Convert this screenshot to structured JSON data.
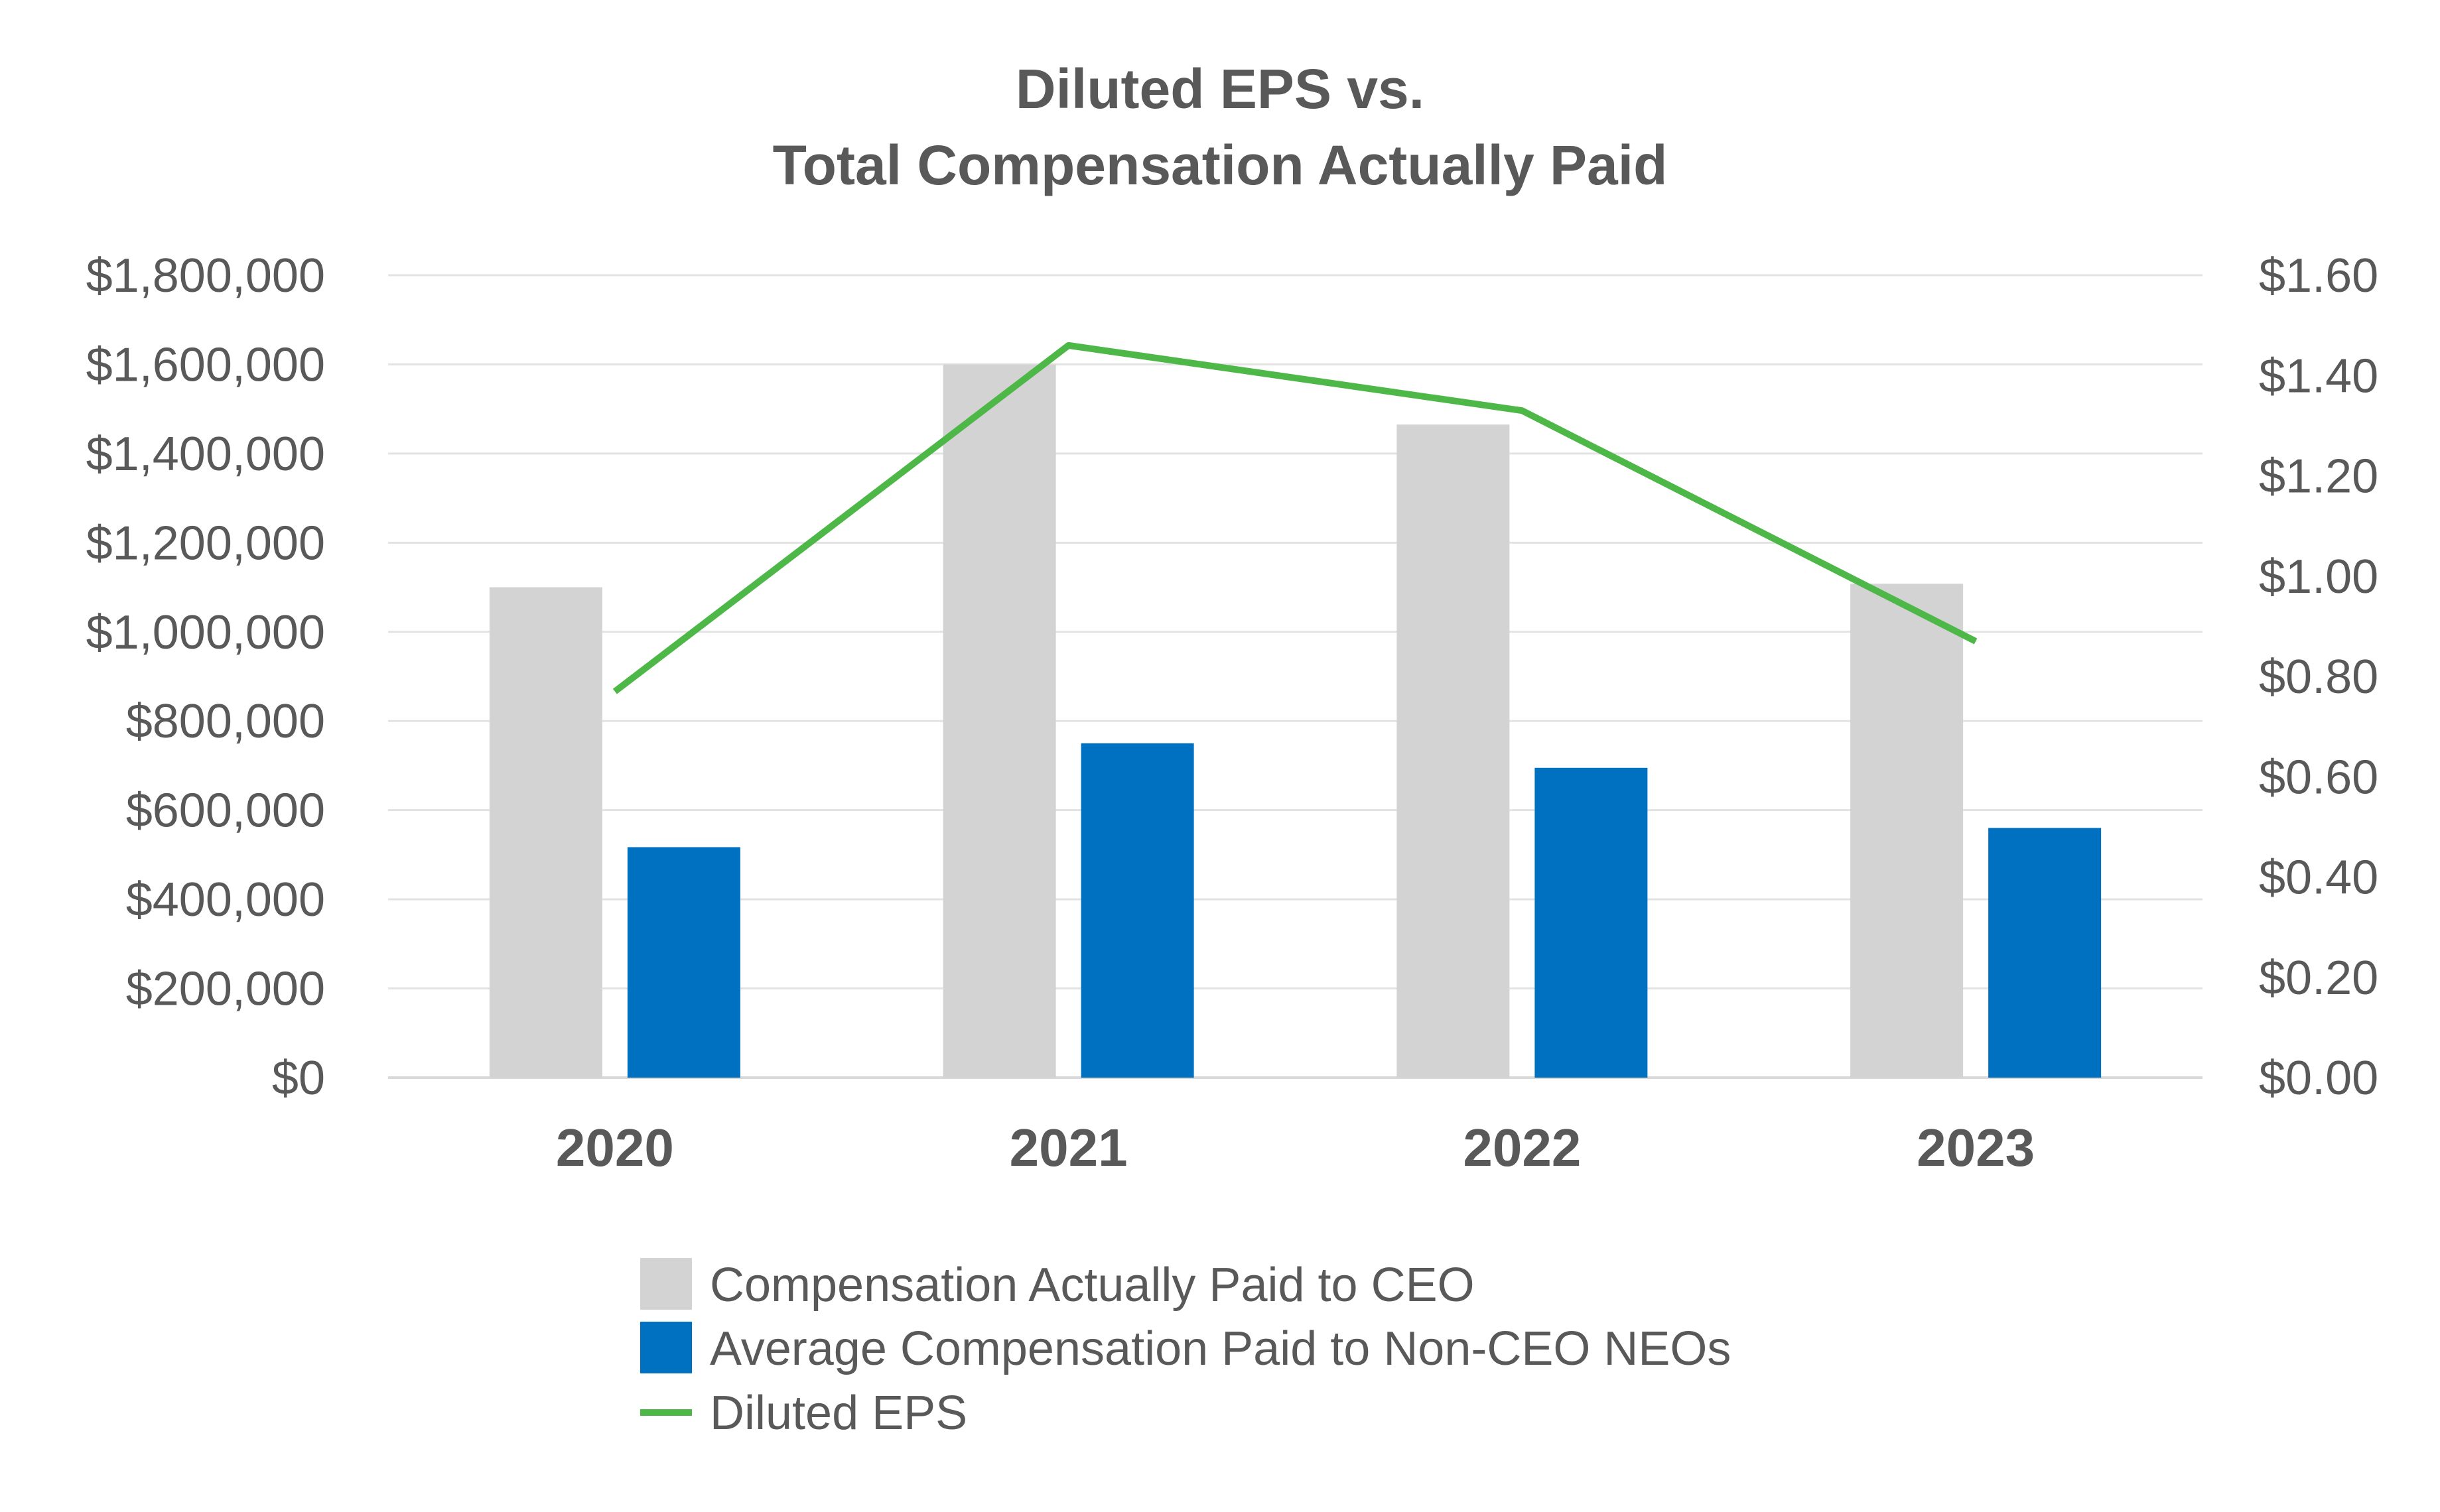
{
  "chart_data": {
    "type": "bar",
    "title_lines": [
      "Diluted EPS vs.",
      "Total Compensation Actually Paid"
    ],
    "xlabel": "",
    "ylabel": "",
    "y2label": "",
    "categories": [
      "2020",
      "2021",
      "2022",
      "2023"
    ],
    "series": [
      {
        "name": "Compensation Actually Paid to CEO",
        "type": "bar",
        "axis": "left",
        "color": "#D3D3D3",
        "values": [
          1100000,
          1600000,
          1465000,
          1108000
        ]
      },
      {
        "name": "Average Compensation Paid to Non-CEO NEOs",
        "type": "bar",
        "axis": "left",
        "color": "#0070C0",
        "values": [
          517000,
          750000,
          695000,
          560000
        ]
      },
      {
        "name": "Diluted EPS",
        "type": "line",
        "axis": "right",
        "color": "#4DB848",
        "values": [
          0.77,
          1.46,
          1.33,
          0.87
        ]
      }
    ],
    "ylim": [
      0,
      1800000
    ],
    "y2lim": [
      0,
      1.6
    ],
    "yticks": [
      "$0",
      "$200,000",
      "$400,000",
      "$600,000",
      "$800,000",
      "$1,000,000",
      "$1,200,000",
      "$1,400,000",
      "$1,600,000",
      "$1,800,000"
    ],
    "y2ticks": [
      "$0.00",
      "$0.20",
      "$0.40",
      "$0.60",
      "$0.80",
      "$1.00",
      "$1.20",
      "$1.40",
      "$1.60"
    ],
    "grid": true,
    "legend_position": "bottom"
  }
}
